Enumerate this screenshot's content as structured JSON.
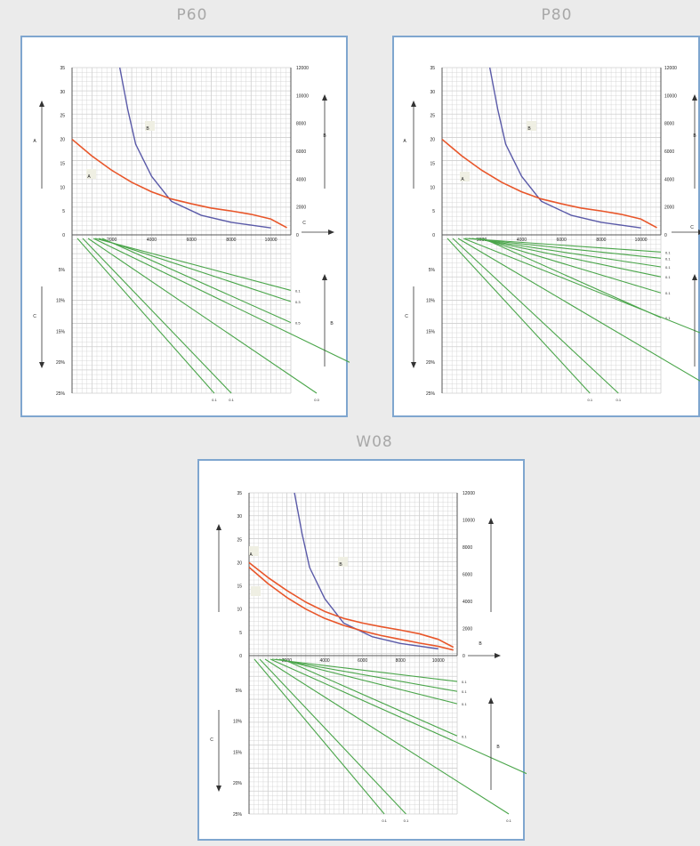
{
  "colors": {
    "curve_b": "#5a5aa8",
    "curve_a": "#e8562a",
    "lines": "#4aa54a",
    "grid": "#cfcfcf",
    "frame": "#7fa6cf"
  },
  "chart_data": [
    {
      "title": "P60",
      "type": "line",
      "top": {
        "x_ticks": [
          "2000",
          "4000",
          "6000",
          "8000",
          "10000"
        ],
        "y_left_ticks": [
          "0",
          "5",
          "10",
          "15",
          "20",
          "25",
          "30",
          "35"
        ],
        "y_right_ticks": [
          "0",
          "2000",
          "4000",
          "6000",
          "8000",
          "10000",
          "12000"
        ],
        "ylim_left": [
          0,
          35
        ],
        "ylim_right": [
          0,
          12000
        ],
        "xlim": [
          0,
          11000
        ],
        "series": [
          {
            "id": "B",
            "axis": "right",
            "color": "#5a5aa8",
            "x": [
              2400,
              2800,
              3200,
              4000,
              5000,
              6500,
              8000,
              10000
            ],
            "y": [
              12000,
              9000,
              6500,
              4200,
              2400,
              1400,
              900,
              500
            ]
          },
          {
            "id": "A",
            "axis": "left",
            "color": "#e8562a",
            "x": [
              0,
              1000,
              2000,
              3000,
              4000,
              5000,
              6000,
              7000,
              8000,
              9000,
              10000,
              10800
            ],
            "y": [
              20,
              16.5,
              13.5,
              11,
              9,
              7.5,
              6.5,
              5.6,
              5,
              4.3,
              3.3,
              1.5
            ]
          }
        ],
        "labels": [
          "A",
          "B",
          "A",
          "B",
          "C"
        ]
      },
      "bottom": {
        "y_ticks": [
          "0%",
          "5%",
          "10%",
          "15%",
          "20%",
          "25%"
        ],
        "ylim": [
          0,
          25
        ],
        "slopes_right": [
          8.4,
          10.2,
          13.6
        ],
        "right_labels": [
          "0.1",
          "0.3",
          "0.5"
        ],
        "slopes_bottom": [
          25,
          28,
          43,
          60
        ],
        "bottom_labels": [
          "0.1",
          "0.1",
          "0.0",
          "0.1"
        ],
        "side_labels": [
          "C",
          "B"
        ]
      }
    },
    {
      "title": "P80",
      "type": "line",
      "top": {
        "x_ticks": [
          "2000",
          "4000",
          "6000",
          "8000",
          "10000"
        ],
        "y_left_ticks": [
          "0",
          "5",
          "10",
          "15",
          "20",
          "25",
          "30",
          "35"
        ],
        "y_right_ticks": [
          "0",
          "2000",
          "4000",
          "6000",
          "8000",
          "10000",
          "12000"
        ],
        "ylim_left": [
          0,
          35
        ],
        "ylim_right": [
          0,
          12000
        ],
        "xlim": [
          0,
          11000
        ],
        "series": [
          {
            "id": "B",
            "axis": "right",
            "color": "#5a5aa8",
            "x": [
              2400,
              2800,
              3200,
              4000,
              5000,
              6500,
              8000,
              10000
            ],
            "y": [
              12000,
              9000,
              6500,
              4200,
              2400,
              1400,
              900,
              500
            ]
          },
          {
            "id": "A",
            "axis": "left",
            "color": "#e8562a",
            "x": [
              0,
              1000,
              2000,
              3000,
              4000,
              5000,
              6000,
              7000,
              8000,
              9000,
              10000,
              10800
            ],
            "y": [
              20,
              16.5,
              13.5,
              11,
              9,
              7.5,
              6.5,
              5.6,
              5,
              4.3,
              3.3,
              1.5
            ]
          }
        ],
        "labels": [
          "A",
          "B",
          "A",
          "B",
          "C"
        ]
      },
      "bottom": {
        "y_ticks": [
          "0%",
          "5%",
          "10%",
          "15%",
          "20%",
          "25%"
        ],
        "ylim": [
          0,
          25
        ],
        "slopes_right": [
          2.2,
          3.2,
          4.6,
          6.2,
          8.8,
          12.8
        ],
        "right_labels": [
          "0.1",
          "0.1",
          "0.1",
          "0.1",
          "0.1",
          "0.1"
        ],
        "slopes_bottom": [
          26,
          31,
          49,
          72
        ],
        "bottom_labels": [
          "0.1",
          "0.1",
          "0.1",
          "0.1"
        ],
        "side_labels": [
          "C",
          "B"
        ]
      }
    },
    {
      "title": "W08",
      "type": "line",
      "top": {
        "x_ticks": [
          "2000",
          "4000",
          "6000",
          "8000",
          "10000"
        ],
        "y_left_ticks": [
          "0",
          "5",
          "10",
          "15",
          "20",
          "25",
          "30",
          "35"
        ],
        "y_right_ticks": [
          "0",
          "2000",
          "4000",
          "6000",
          "8000",
          "10000",
          "12000"
        ],
        "ylim_left": [
          0,
          35
        ],
        "ylim_right": [
          0,
          12000
        ],
        "xlim": [
          0,
          11000
        ],
        "series": [
          {
            "id": "B",
            "axis": "right",
            "color": "#5a5aa8",
            "x": [
              2400,
              2800,
              3200,
              4000,
              5000,
              6500,
              8000,
              10000
            ],
            "y": [
              12000,
              9000,
              6500,
              4200,
              2400,
              1400,
              900,
              500
            ]
          },
          {
            "id": "A1",
            "axis": "left",
            "color": "#e8562a",
            "x": [
              0,
              1000,
              2000,
              3000,
              4000,
              5000,
              6000,
              7000,
              8000,
              9000,
              10000,
              10800
            ],
            "y": [
              20,
              16.8,
              14,
              11.5,
              9.5,
              8,
              7,
              6.2,
              5.5,
              4.7,
              3.5,
              1.8
            ]
          },
          {
            "id": "A2",
            "axis": "left",
            "color": "#e8562a",
            "x": [
              0,
              1000,
              2000,
              3000,
              4000,
              5000,
              6000,
              7000,
              8000,
              9000,
              10000,
              10800
            ],
            "y": [
              19,
              15.5,
              12.5,
              10,
              8,
              6.5,
              5.3,
              4.3,
              3.5,
              2.7,
              2,
              1.2
            ]
          }
        ],
        "labels": [
          "A",
          "B",
          "A1",
          "A2",
          "B",
          "C"
        ]
      },
      "bottom": {
        "y_ticks": [
          "0%",
          "5%",
          "10%",
          "15%",
          "20%",
          "25%"
        ],
        "ylim": [
          0,
          25
        ],
        "slopes_right": [
          3.6,
          5.2,
          7.2,
          12.4
        ],
        "right_labels": [
          "0.1",
          "0.1",
          "0.1",
          "0.1"
        ],
        "slopes_bottom": [
          25,
          29,
          48,
          68
        ],
        "bottom_labels": [
          "0.1",
          "0.1",
          "0.1",
          "0.1"
        ],
        "side_labels": [
          "C",
          "B"
        ]
      }
    }
  ]
}
